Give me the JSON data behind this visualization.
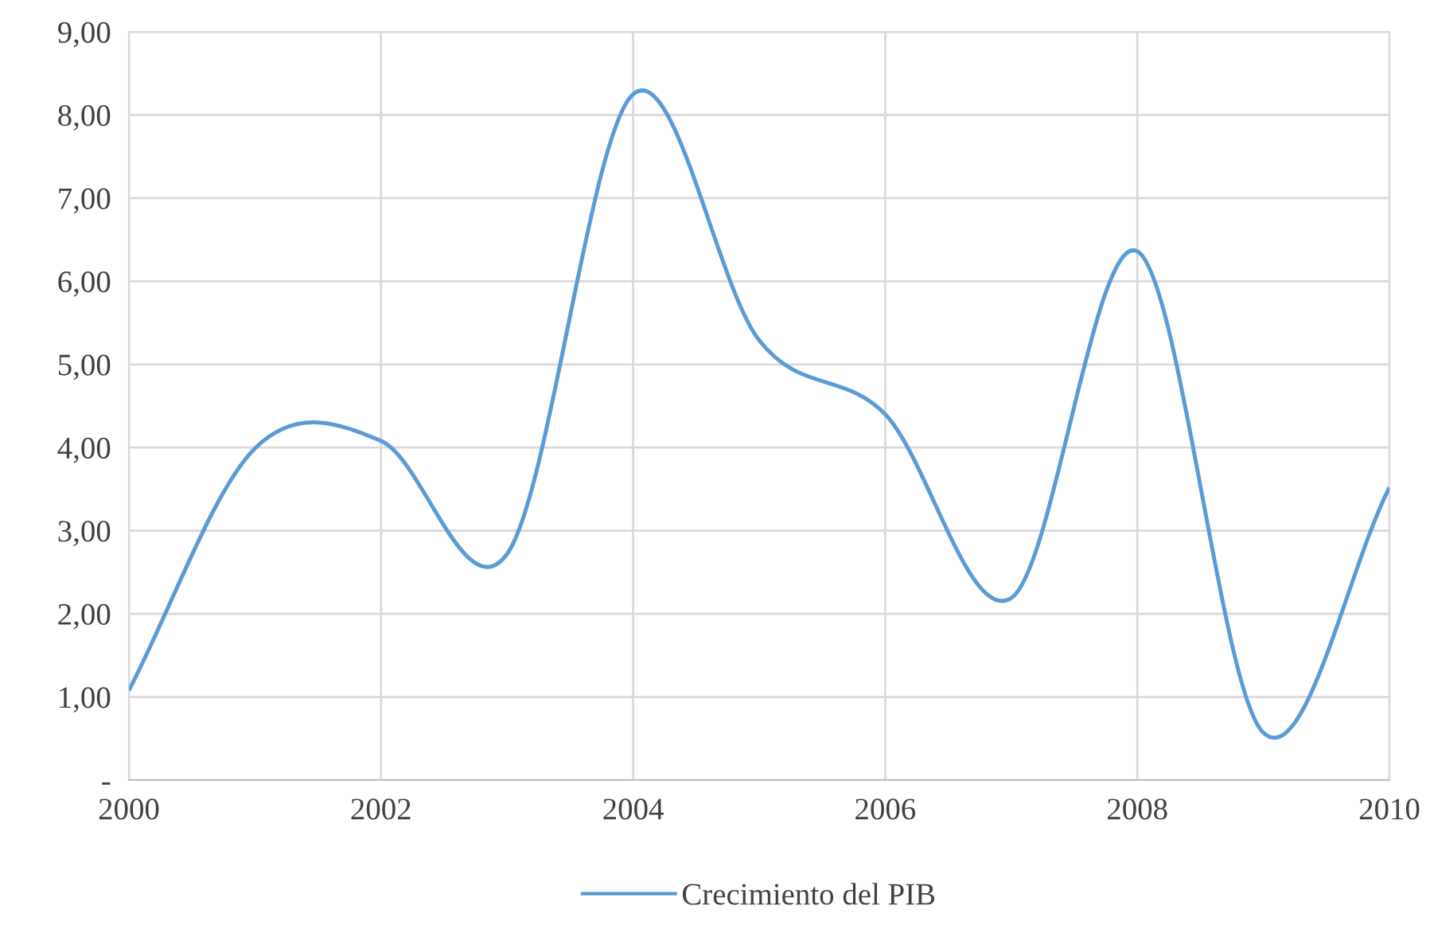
{
  "chart_data": {
    "type": "line",
    "x": [
      2000,
      2001,
      2002,
      2003,
      2004,
      2005,
      2006,
      2007,
      2008,
      2009,
      2010
    ],
    "series": [
      {
        "name": "Crecimiento del PIB",
        "color": "#5b9bd5",
        "values": [
          1.08,
          3.99,
          4.08,
          2.72,
          8.25,
          5.29,
          4.4,
          2.19,
          6.36,
          0.57,
          3.52
        ]
      }
    ],
    "xlim": [
      2000,
      2010
    ],
    "xticks": [
      2000,
      2002,
      2004,
      2006,
      2008,
      2010
    ],
    "ylim": [
      0,
      9
    ],
    "yticks": [
      {
        "value": 0,
        "label": "-"
      },
      {
        "value": 1,
        "label": "1,00"
      },
      {
        "value": 2,
        "label": "2,00"
      },
      {
        "value": 3,
        "label": "3,00"
      },
      {
        "value": 4,
        "label": "4,00"
      },
      {
        "value": 5,
        "label": "5,00"
      },
      {
        "value": 6,
        "label": "6,00"
      },
      {
        "value": 7,
        "label": "7,00"
      },
      {
        "value": 8,
        "label": "8,00"
      },
      {
        "value": 9,
        "label": "9,00"
      }
    ],
    "grid": true,
    "legend": "bottom",
    "marker": "none",
    "line_style": "solid"
  }
}
